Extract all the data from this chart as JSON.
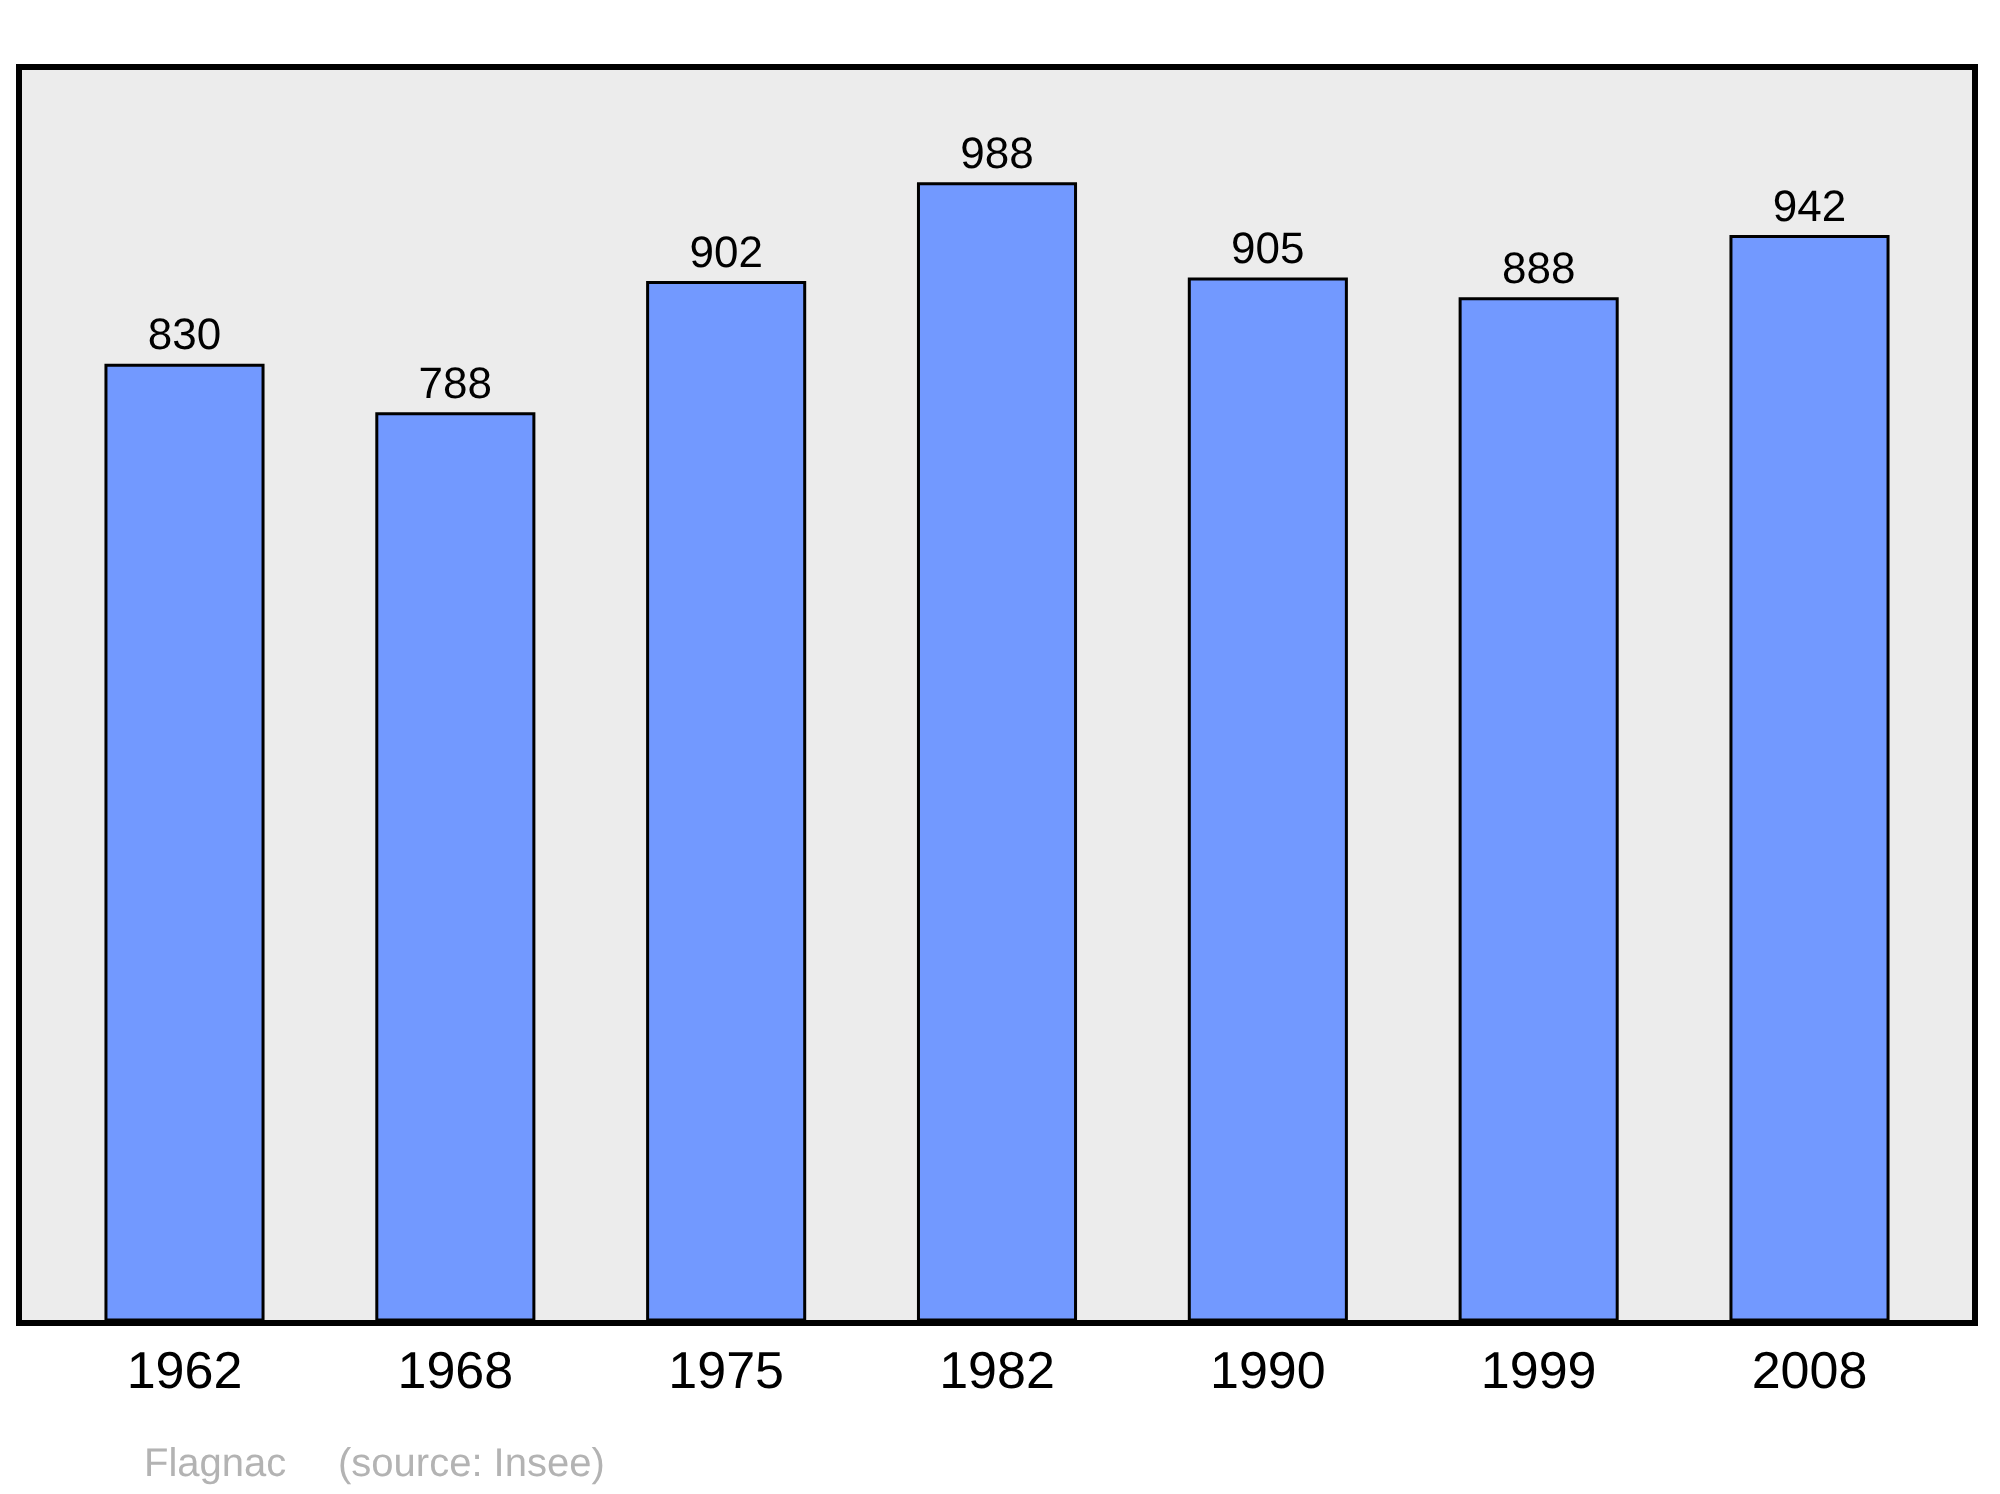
{
  "chart_data": {
    "type": "bar",
    "categories": [
      "1962",
      "1968",
      "1975",
      "1982",
      "1990",
      "1999",
      "2008"
    ],
    "values": [
      830,
      788,
      902,
      988,
      905,
      888,
      942
    ],
    "color": "#7299ff",
    "tick_labels": "x",
    "data_labels": true,
    "grid": false,
    "legend": false,
    "annotations": [
      "Flagnac",
      "(source: Insee)"
    ]
  }
}
